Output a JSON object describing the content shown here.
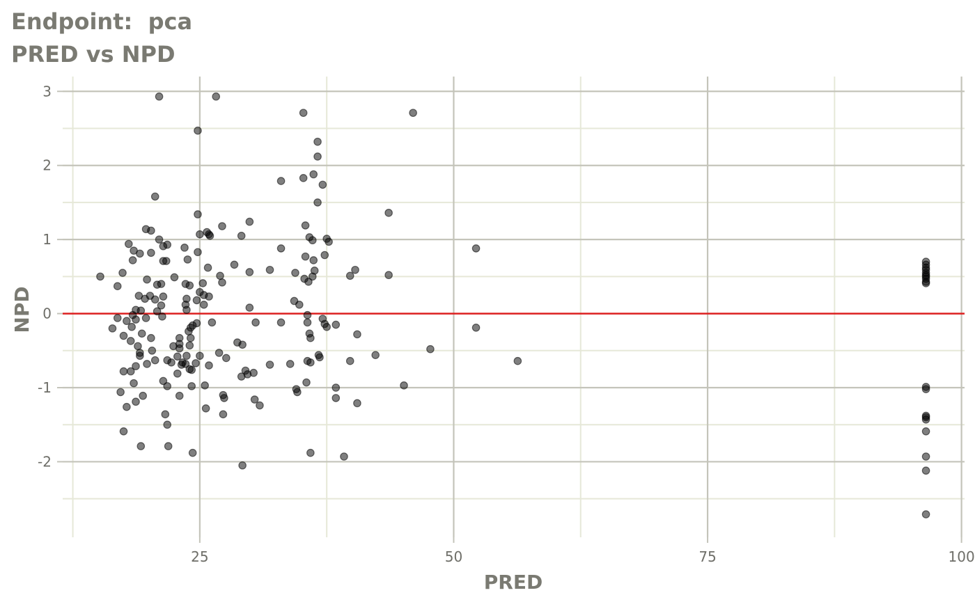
{
  "chart_data": {
    "type": "scatter",
    "title": "Endpoint:  pca",
    "subtitle": "PRED vs NPD",
    "xlabel": "PRED",
    "ylabel": "NPD",
    "xlim": [
      11.5,
      100.3
    ],
    "ylim": [
      -3.02,
      3.2
    ],
    "x_ticks": [
      25,
      50,
      75,
      100
    ],
    "y_ticks": [
      -2,
      -1,
      0,
      1,
      2,
      3
    ],
    "reference_line": {
      "y": 0,
      "color": "#dd2020"
    },
    "grid": true,
    "point_color": "#000000",
    "points": [
      [
        15.2,
        0.5
      ],
      [
        16.4,
        -0.2
      ],
      [
        16.9,
        -0.06
      ],
      [
        16.9,
        0.37
      ],
      [
        17.2,
        -1.06
      ],
      [
        17.4,
        0.55
      ],
      [
        17.5,
        -0.3
      ],
      [
        17.5,
        -0.78
      ],
      [
        17.5,
        -1.59
      ],
      [
        17.8,
        -1.26
      ],
      [
        17.8,
        -0.1
      ],
      [
        18.0,
        0.94
      ],
      [
        18.2,
        -0.37
      ],
      [
        18.2,
        -0.78
      ],
      [
        18.3,
        -0.18
      ],
      [
        18.4,
        0.72
      ],
      [
        18.4,
        -0.02
      ],
      [
        18.5,
        0.85
      ],
      [
        18.5,
        -0.94
      ],
      [
        18.7,
        0.05
      ],
      [
        18.7,
        -0.08
      ],
      [
        18.7,
        -0.71
      ],
      [
        18.7,
        -1.19
      ],
      [
        18.9,
        -0.44
      ],
      [
        19.0,
        0.24
      ],
      [
        19.1,
        0.81
      ],
      [
        19.1,
        -0.57
      ],
      [
        19.1,
        -0.53
      ],
      [
        19.2,
        -1.79
      ],
      [
        19.2,
        0.04
      ],
      [
        19.3,
        -0.27
      ],
      [
        19.4,
        -1.11
      ],
      [
        19.6,
        0.2
      ],
      [
        19.7,
        1.14
      ],
      [
        19.7,
        -0.06
      ],
      [
        19.8,
        0.46
      ],
      [
        19.8,
        -0.68
      ],
      [
        20.1,
        0.24
      ],
      [
        20.2,
        1.12
      ],
      [
        20.2,
        0.82
      ],
      [
        20.2,
        -0.33
      ],
      [
        20.3,
        -0.5
      ],
      [
        20.6,
        1.58
      ],
      [
        20.6,
        0.19
      ],
      [
        20.6,
        -0.63
      ],
      [
        20.8,
        0.39
      ],
      [
        20.8,
        0.03
      ],
      [
        21.0,
        2.93
      ],
      [
        21.0,
        1.0
      ],
      [
        21.2,
        0.4
      ],
      [
        21.2,
        0.11
      ],
      [
        21.3,
        -0.04
      ],
      [
        21.4,
        0.71
      ],
      [
        21.4,
        0.91
      ],
      [
        21.4,
        0.23
      ],
      [
        21.4,
        -0.91
      ],
      [
        21.6,
        -1.36
      ],
      [
        21.7,
        0.71
      ],
      [
        21.8,
        0.93
      ],
      [
        21.8,
        -0.63
      ],
      [
        21.8,
        -0.98
      ],
      [
        21.8,
        -1.5
      ],
      [
        21.9,
        -1.79
      ],
      [
        22.2,
        -0.66
      ],
      [
        22.4,
        -0.44
      ],
      [
        22.5,
        0.49
      ],
      [
        22.8,
        -0.81
      ],
      [
        22.8,
        -0.58
      ],
      [
        23.0,
        -0.33
      ],
      [
        23.0,
        -0.41
      ],
      [
        23.0,
        -0.47
      ],
      [
        23.0,
        -1.11
      ],
      [
        23.2,
        -0.69
      ],
      [
        23.3,
        -0.66
      ],
      [
        23.5,
        0.89
      ],
      [
        23.6,
        0.4
      ],
      [
        23.6,
        0.12
      ],
      [
        23.6,
        -0.68
      ],
      [
        23.7,
        -0.57
      ],
      [
        23.7,
        0.2
      ],
      [
        23.7,
        0.05
      ],
      [
        23.8,
        0.73
      ],
      [
        23.9,
        -0.24
      ],
      [
        24.0,
        0.38
      ],
      [
        24.0,
        -0.43
      ],
      [
        24.0,
        -0.75
      ],
      [
        24.1,
        -0.19
      ],
      [
        24.1,
        -0.33
      ],
      [
        24.2,
        -0.76
      ],
      [
        24.2,
        -0.98
      ],
      [
        24.3,
        -0.16
      ],
      [
        24.3,
        -1.88
      ],
      [
        24.6,
        -0.67
      ],
      [
        24.7,
        -0.13
      ],
      [
        24.7,
        0.18
      ],
      [
        24.8,
        2.47
      ],
      [
        24.8,
        1.34
      ],
      [
        24.8,
        0.83
      ],
      [
        25.0,
        1.07
      ],
      [
        25.0,
        0.29
      ],
      [
        25.0,
        -0.57
      ],
      [
        25.3,
        0.41
      ],
      [
        25.4,
        0.25
      ],
      [
        25.4,
        0.12
      ],
      [
        25.5,
        -0.97
      ],
      [
        25.6,
        -1.28
      ],
      [
        25.7,
        1.1
      ],
      [
        25.8,
        0.62
      ],
      [
        25.9,
        1.07
      ],
      [
        25.9,
        0.23
      ],
      [
        25.9,
        -0.7
      ],
      [
        26.0,
        1.05
      ],
      [
        26.2,
        -0.12
      ],
      [
        26.6,
        2.93
      ],
      [
        26.9,
        -0.53
      ],
      [
        27.0,
        0.51
      ],
      [
        27.2,
        1.18
      ],
      [
        27.2,
        0.42
      ],
      [
        27.3,
        -1.1
      ],
      [
        27.3,
        -1.36
      ],
      [
        27.4,
        -1.14
      ],
      [
        27.6,
        -0.6
      ],
      [
        28.4,
        0.66
      ],
      [
        28.7,
        -0.39
      ],
      [
        29.1,
        1.05
      ],
      [
        29.1,
        -0.85
      ],
      [
        29.2,
        -0.42
      ],
      [
        29.2,
        -2.05
      ],
      [
        29.5,
        -0.77
      ],
      [
        29.7,
        -0.82
      ],
      [
        29.9,
        1.24
      ],
      [
        29.9,
        0.56
      ],
      [
        29.9,
        0.08
      ],
      [
        30.3,
        -0.8
      ],
      [
        30.4,
        -1.16
      ],
      [
        30.5,
        -0.12
      ],
      [
        30.9,
        -1.24
      ],
      [
        31.9,
        0.59
      ],
      [
        31.9,
        -0.69
      ],
      [
        33.0,
        1.79
      ],
      [
        33.0,
        0.88
      ],
      [
        33.0,
        -0.12
      ],
      [
        33.9,
        -0.68
      ],
      [
        34.3,
        0.17
      ],
      [
        34.4,
        0.55
      ],
      [
        34.5,
        -1.02
      ],
      [
        34.6,
        -1.06
      ],
      [
        34.8,
        0.12
      ],
      [
        35.2,
        2.71
      ],
      [
        35.2,
        1.83
      ],
      [
        35.3,
        0.47
      ],
      [
        35.4,
        1.19
      ],
      [
        35.4,
        0.77
      ],
      [
        35.5,
        -0.93
      ],
      [
        35.6,
        -0.12
      ],
      [
        35.6,
        -0.02
      ],
      [
        35.6,
        -0.64
      ],
      [
        35.7,
        0.43
      ],
      [
        35.8,
        1.03
      ],
      [
        35.8,
        -0.27
      ],
      [
        35.9,
        -0.66
      ],
      [
        35.9,
        -0.33
      ],
      [
        35.9,
        -1.88
      ],
      [
        36.1,
        0.99
      ],
      [
        36.1,
        0.5
      ],
      [
        36.2,
        1.88
      ],
      [
        36.2,
        0.72
      ],
      [
        36.3,
        0.58
      ],
      [
        36.6,
        2.32
      ],
      [
        36.6,
        2.12
      ],
      [
        36.6,
        1.5
      ],
      [
        36.7,
        -0.56
      ],
      [
        36.8,
        -0.59
      ],
      [
        37.1,
        1.74
      ],
      [
        37.1,
        -0.07
      ],
      [
        37.3,
        -0.14
      ],
      [
        37.3,
        0.79
      ],
      [
        37.5,
        1.01
      ],
      [
        37.5,
        -0.18
      ],
      [
        37.7,
        0.97
      ],
      [
        38.4,
        -0.15
      ],
      [
        38.4,
        -1.0
      ],
      [
        38.4,
        -1.14
      ],
      [
        39.2,
        -1.93
      ],
      [
        39.8,
        0.51
      ],
      [
        39.8,
        -0.64
      ],
      [
        40.3,
        0.59
      ],
      [
        40.5,
        -0.28
      ],
      [
        40.5,
        -1.21
      ],
      [
        42.3,
        -0.56
      ],
      [
        43.6,
        1.36
      ],
      [
        43.6,
        0.52
      ],
      [
        45.1,
        -0.97
      ],
      [
        46.0,
        2.71
      ],
      [
        47.7,
        -0.48
      ],
      [
        52.2,
        0.88
      ],
      [
        52.2,
        -0.19
      ],
      [
        56.3,
        -0.64
      ],
      [
        96.5,
        0.7
      ],
      [
        96.5,
        0.66
      ],
      [
        96.5,
        0.62
      ],
      [
        96.5,
        0.59
      ],
      [
        96.5,
        0.55
      ],
      [
        96.5,
        0.52
      ],
      [
        96.5,
        0.5
      ],
      [
        96.5,
        0.47
      ],
      [
        96.5,
        0.43
      ],
      [
        96.5,
        0.41
      ],
      [
        96.5,
        -0.99
      ],
      [
        96.5,
        -1.02
      ],
      [
        96.5,
        -1.38
      ],
      [
        96.5,
        -1.4
      ],
      [
        96.5,
        -1.43
      ],
      [
        96.5,
        -1.59
      ],
      [
        96.5,
        -1.93
      ],
      [
        96.5,
        -2.12
      ],
      [
        96.5,
        -2.71
      ]
    ]
  }
}
